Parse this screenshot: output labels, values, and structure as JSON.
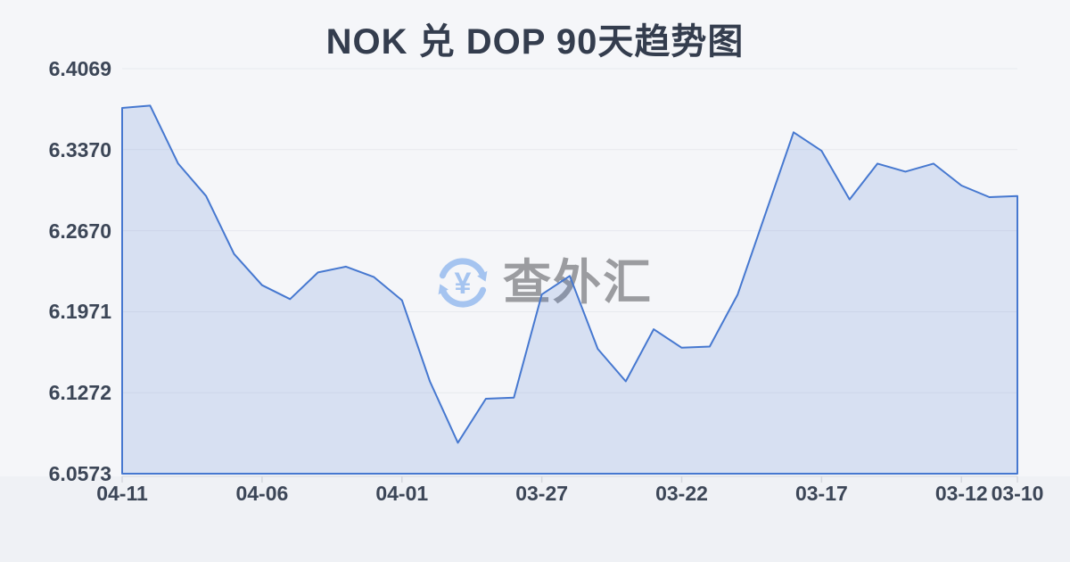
{
  "page": {
    "title": "NOK 兑 DOP 90天趋势图"
  },
  "watermark": {
    "icon": "currency-refresh-icon",
    "text": "查外汇",
    "icon_color": "#a5c4f0",
    "text_color": "#9b9ca0"
  },
  "chart_data": {
    "type": "area",
    "title": "NOK 兑 DOP 90天趋势图",
    "x_order": "reverse-chronological",
    "x": [
      "04-11",
      "04-10",
      "04-09",
      "04-08",
      "04-07",
      "04-06",
      "04-05",
      "04-04",
      "04-03",
      "04-02",
      "04-01",
      "03-31",
      "03-30",
      "03-29",
      "03-28",
      "03-27",
      "03-26",
      "03-25",
      "03-24",
      "03-23",
      "03-22",
      "03-21",
      "03-20",
      "03-19",
      "03-18",
      "03-17",
      "03-16",
      "03-15",
      "03-14",
      "03-13",
      "03-12",
      "03-11",
      "03-10"
    ],
    "values": [
      6.373,
      6.375,
      6.325,
      6.297,
      6.247,
      6.22,
      6.208,
      6.231,
      6.236,
      6.227,
      6.207,
      6.137,
      6.084,
      6.122,
      6.123,
      6.212,
      6.228,
      6.165,
      6.137,
      6.182,
      6.166,
      6.167,
      6.212,
      6.282,
      6.352,
      6.336,
      6.294,
      6.325,
      6.318,
      6.325,
      6.306,
      6.296,
      6.297
    ],
    "x_tick_labels": [
      "04-11",
      "04-06",
      "04-01",
      "03-27",
      "03-22",
      "03-17",
      "03-12",
      "03-10"
    ],
    "x_tick_indices": [
      0,
      5,
      10,
      15,
      20,
      25,
      30,
      32
    ],
    "y_tick_labels": [
      "6.4069",
      "6.3370",
      "6.2670",
      "6.1971",
      "6.1272",
      "6.0573"
    ],
    "ylim": [
      6.0573,
      6.4069
    ],
    "grid": true,
    "legend": null,
    "line_color": "#4678d0",
    "fill_color": "rgba(70,120,208,0.17)",
    "grid_color": "#e7e9ee",
    "axis_line_color": "#dde0e6",
    "tick_color": "#d5d8de"
  }
}
